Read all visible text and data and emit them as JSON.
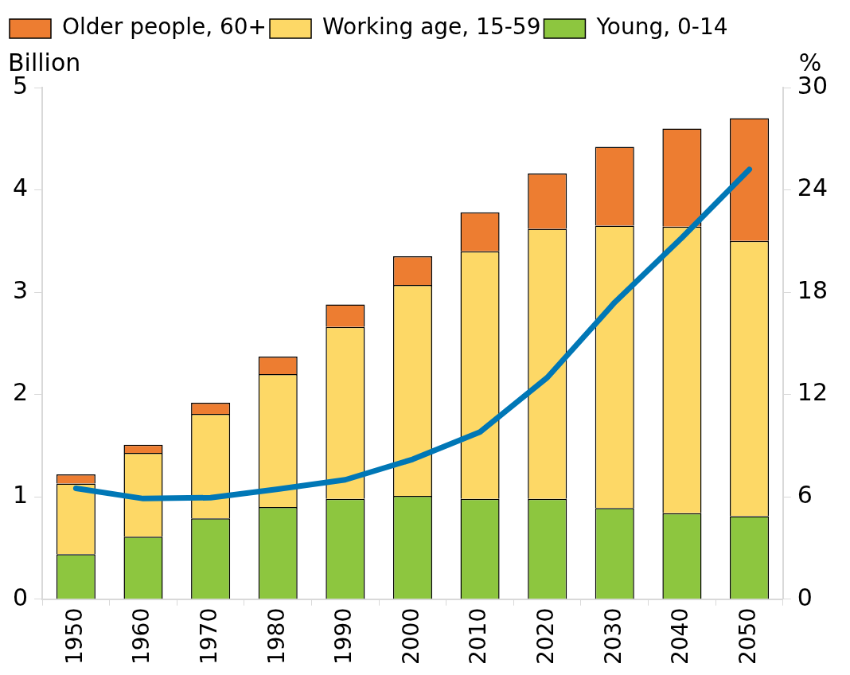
{
  "chart_data": {
    "type": "bar",
    "stacked": true,
    "ylabel": "Billion",
    "y2label": "%",
    "categories": [
      "1950",
      "1960",
      "1970",
      "1980",
      "1990",
      "2000",
      "2010",
      "2020",
      "2030",
      "2040",
      "2050"
    ],
    "series": [
      {
        "name": "Young, 0-14",
        "color": "#8dc63f",
        "values": [
          0.44,
          0.61,
          0.79,
          0.9,
          0.98,
          1.01,
          0.98,
          0.98,
          0.89,
          0.84,
          0.81
        ]
      },
      {
        "name": "Working age, 15-59",
        "color": "#fdd866",
        "values": [
          0.69,
          0.82,
          1.02,
          1.3,
          1.68,
          2.06,
          2.42,
          2.64,
          2.76,
          2.8,
          2.69
        ]
      },
      {
        "name": "Older people, 60+",
        "color": "#ed7d31",
        "values": [
          0.09,
          0.08,
          0.11,
          0.17,
          0.22,
          0.28,
          0.38,
          0.54,
          0.77,
          0.96,
          1.2
        ]
      },
      {
        "type": "line",
        "axis": "y2",
        "color": "#0077b6",
        "values": [
          6.5,
          5.9,
          5.95,
          6.45,
          7.0,
          8.2,
          9.8,
          13.0,
          17.4,
          21.2,
          25.2
        ]
      }
    ],
    "ylim": [
      0,
      5
    ],
    "yticks": [
      0,
      1,
      2,
      3,
      4,
      5
    ],
    "y2lim": [
      0,
      30
    ],
    "y2ticks": [
      0,
      6,
      12,
      18,
      24,
      30
    ],
    "grid": false,
    "legend": "top left",
    "marker": "none"
  }
}
